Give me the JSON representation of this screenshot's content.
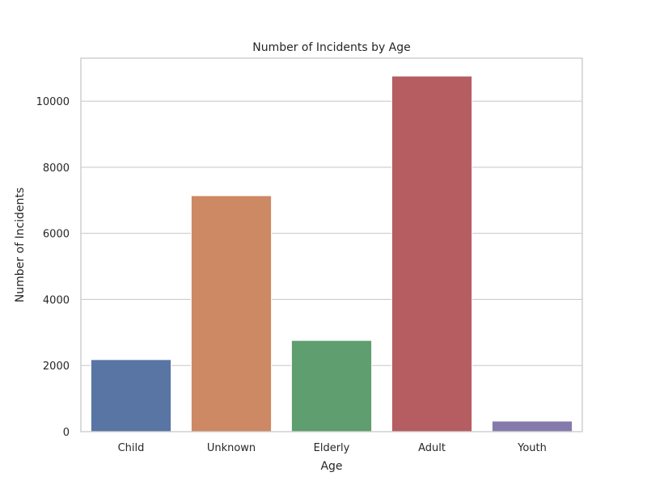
{
  "chart_data": {
    "type": "bar",
    "title": "Number of Incidents by Age",
    "xlabel": "Age",
    "ylabel": "Number of Incidents",
    "categories": [
      "Child",
      "Unknown",
      "Elderly",
      "Adult",
      "Youth"
    ],
    "values": [
      2180,
      7140,
      2760,
      10760,
      320
    ],
    "colors": [
      "#5875a4",
      "#cc8963",
      "#5f9e6e",
      "#b55d60",
      "#857aab"
    ],
    "ylim": [
      0,
      11300
    ],
    "yticks": [
      0,
      2000,
      4000,
      6000,
      8000,
      10000
    ],
    "grid": true,
    "style": "whitegrid"
  }
}
